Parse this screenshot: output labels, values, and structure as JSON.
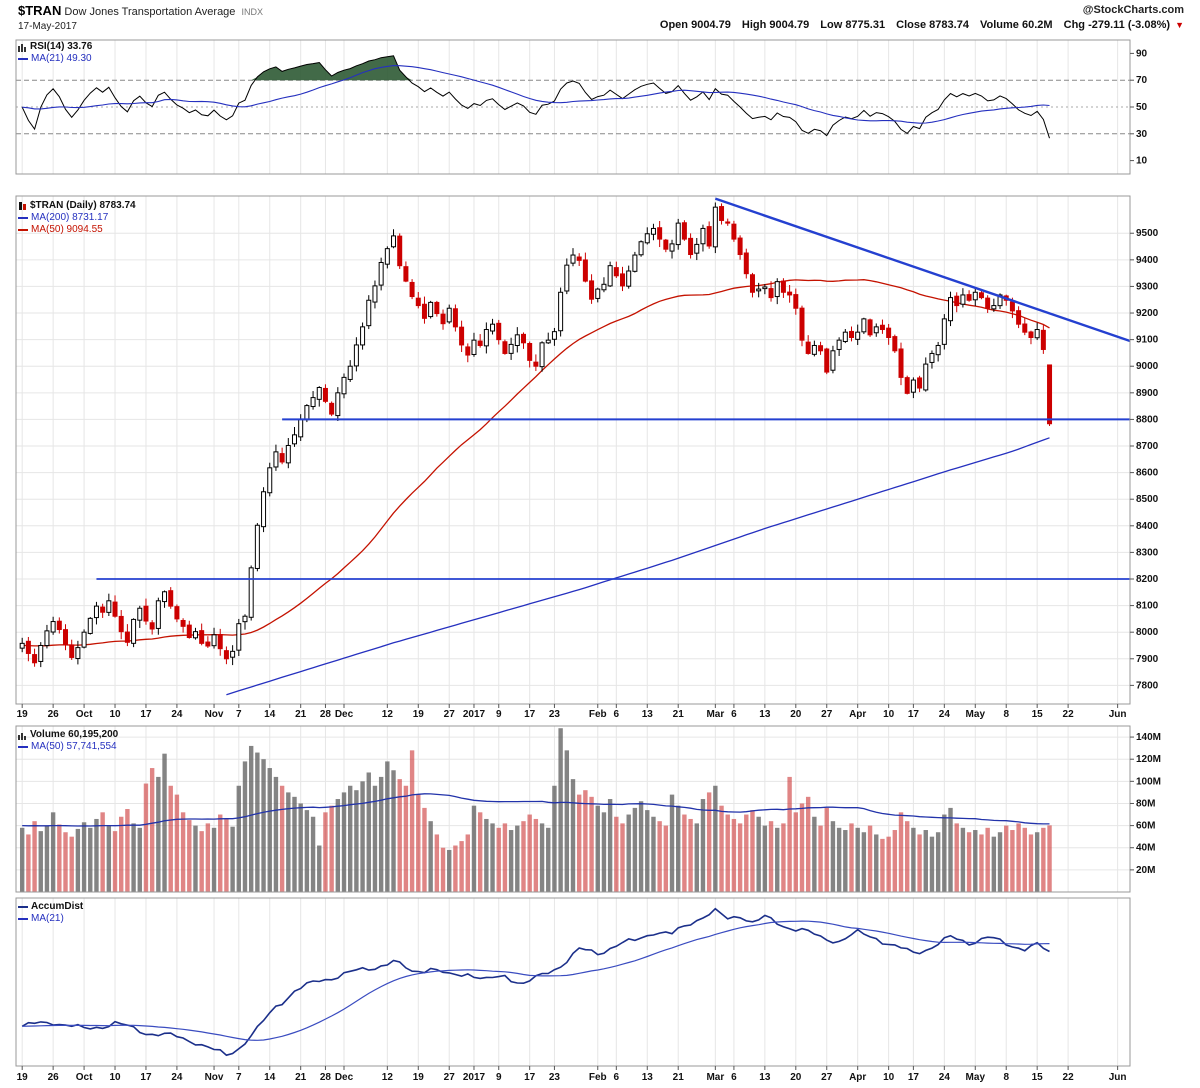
{
  "header": {
    "symbol": "$TRAN",
    "name": "Dow Jones Transportation Average",
    "exchange": "INDX",
    "credit": "@StockCharts.com",
    "date": "17-May-2017",
    "quote_items": [
      {
        "label": "Open",
        "value": "9004.79"
      },
      {
        "label": "High",
        "value": "9004.79"
      },
      {
        "label": "Low",
        "value": "8775.31"
      },
      {
        "label": "Close",
        "value": "8783.74"
      },
      {
        "label": "Volume",
        "value": "60.2M"
      },
      {
        "label": "Chg",
        "value": "-279.11 (-3.08%)"
      }
    ],
    "chg_arrow": "▼"
  },
  "colors": {
    "grid": "#e6e6e6",
    "border": "#999999",
    "axis_text": "#111111",
    "candle_up": "#000000",
    "candle_up_fill": "#ffffff",
    "candle_down": "#cc0000",
    "ma50": "#c41200",
    "ma200": "#2530bf",
    "trendline": "#2440d0",
    "rsi_line": "#000000",
    "rsi_ma": "#2530bf",
    "rsi_fill": "#2d5a34",
    "vol_up": "#555555",
    "vol_down": "#cc3333",
    "vol_ma": "#2233aa",
    "ad_line": "#1b2f8a",
    "ad_ma": "#3a4cc0"
  },
  "chart_data": [
    {
      "type": "line",
      "panel": "rsi",
      "label": "RSI(14) 33.76",
      "ma_label": "MA(21) 49.30",
      "last_value": 33.76,
      "ma_period": 21,
      "ylim": [
        0,
        100
      ],
      "yticks": [
        90,
        70,
        50,
        30,
        10
      ],
      "overbought": 70,
      "midline": 50,
      "oversold": 30
    },
    {
      "type": "candlestick",
      "panel": "price",
      "label": "$TRAN (Daily) 8783.74",
      "ma200_label": "MA(200) 8731.17",
      "ma50_label": "MA(50) 9094.55",
      "ylim": [
        7730,
        9640
      ],
      "yticks": [
        9500,
        9400,
        9300,
        9200,
        9100,
        9000,
        8900,
        8800,
        8700,
        8600,
        8500,
        8400,
        8300,
        8200,
        8100,
        8000,
        7900,
        7800
      ],
      "x_ticks": [
        [
          "19",
          0
        ],
        [
          "26",
          5
        ],
        [
          "Oct",
          10
        ],
        [
          "10",
          15
        ],
        [
          "17",
          20
        ],
        [
          "24",
          25
        ],
        [
          "Nov",
          31
        ],
        [
          "7",
          35
        ],
        [
          "14",
          40
        ],
        [
          "21",
          45
        ],
        [
          "28",
          49
        ],
        [
          "Dec",
          52
        ],
        [
          "12",
          59
        ],
        [
          "19",
          64
        ],
        [
          "27",
          69
        ],
        [
          "2017",
          73
        ],
        [
          "9",
          77
        ],
        [
          "17",
          82
        ],
        [
          "23",
          86
        ],
        [
          "Feb",
          93
        ],
        [
          "6",
          96
        ],
        [
          "13",
          101
        ],
        [
          "21",
          106
        ],
        [
          "Mar",
          112
        ],
        [
          "6",
          115
        ],
        [
          "13",
          120
        ],
        [
          "20",
          125
        ],
        [
          "27",
          130
        ],
        [
          "Apr",
          135
        ],
        [
          "10",
          140
        ],
        [
          "17",
          144
        ],
        [
          "24",
          149
        ],
        [
          "May",
          154
        ],
        [
          "8",
          159
        ],
        [
          "15",
          164
        ],
        [
          "22",
          169
        ],
        [
          "Jun",
          177
        ]
      ],
      "x_domain": [
        -1,
        179
      ],
      "closes": [
        7958,
        7920,
        7885,
        7950,
        8005,
        8040,
        8010,
        7952,
        7905,
        7942,
        8000,
        8052,
        8098,
        8075,
        8118,
        8060,
        8002,
        7962,
        8048,
        8090,
        8042,
        8012,
        8118,
        8152,
        8098,
        8050,
        8022,
        7980,
        8002,
        7958,
        7948,
        7990,
        7938,
        7900,
        7928,
        8032,
        8060,
        8242,
        8402,
        8528,
        8618,
        8678,
        8640,
        8702,
        8742,
        8800,
        8852,
        8882,
        8920,
        8868,
        8820,
        8900,
        8958,
        9000,
        9080,
        9148,
        9248,
        9302,
        9390,
        9442,
        9490,
        9378,
        9320,
        9262,
        9228,
        9180,
        9240,
        9198,
        9160,
        9218,
        9148,
        9080,
        9042,
        9098,
        9078,
        9138,
        9158,
        9100,
        9048,
        9082,
        9118,
        9088,
        9022,
        9000,
        9088,
        9098,
        9130,
        9278,
        9380,
        9418,
        9398,
        9320,
        9252,
        9290,
        9308,
        9378,
        9340,
        9302,
        9358,
        9418,
        9468,
        9498,
        9518,
        9478,
        9440,
        9460,
        9538,
        9478,
        9420,
        9458,
        9518,
        9452,
        9598,
        9548,
        9538,
        9478,
        9420,
        9348,
        9278,
        9290,
        9298,
        9258,
        9318,
        9278,
        9268,
        9218,
        9098,
        9048,
        9078,
        9058,
        8978,
        9058,
        9098,
        9128,
        9108,
        9128,
        9178,
        9118,
        9148,
        9138,
        9108,
        9058,
        8958,
        8898,
        8948,
        8918,
        9008,
        9048,
        9078,
        9178,
        9258,
        9228,
        9268,
        9248,
        9278,
        9258,
        9218,
        9228,
        9268,
        9248,
        9208,
        9158,
        9128,
        9108,
        9138,
        9063,
        8783.74
      ],
      "last_bar": {
        "open": 9004.79,
        "high": 9004.79,
        "low": 8775.31,
        "close": 8783.74
      },
      "ma50_period": 50,
      "ma200_waypoints": [
        [
          33,
          7765
        ],
        [
          45,
          7852
        ],
        [
          60,
          7960
        ],
        [
          75,
          8060
        ],
        [
          90,
          8160
        ],
        [
          105,
          8270
        ],
        [
          120,
          8390
        ],
        [
          135,
          8500
        ],
        [
          150,
          8610
        ],
        [
          160,
          8680
        ],
        [
          166,
          8731
        ]
      ],
      "trendlines": [
        {
          "kind": "diagonal",
          "x1": 112,
          "y1": 9630,
          "x2": 179,
          "y2": 9095
        },
        {
          "kind": "hline",
          "y": 8800,
          "x1": 42,
          "x2": 179
        },
        {
          "kind": "hline",
          "y": 8200,
          "x1": 12,
          "x2": 179
        }
      ]
    },
    {
      "type": "bar",
      "panel": "volume",
      "label": "Volume 60,195,200",
      "ma_label": "MA(50) 57,741,554",
      "ma_period": 50,
      "ylim_millions": [
        0,
        150
      ],
      "yticks_millions": [
        140,
        120,
        100,
        80,
        60,
        40,
        20
      ],
      "volumes_millions": [
        58,
        52,
        64,
        55,
        60,
        72,
        61,
        54,
        50,
        57,
        63,
        58,
        66,
        72,
        60,
        55,
        68,
        75,
        62,
        58,
        98,
        112,
        104,
        125,
        96,
        88,
        72,
        65,
        60,
        55,
        62,
        58,
        70,
        66,
        59,
        96,
        118,
        132,
        126,
        120,
        112,
        104,
        96,
        90,
        86,
        80,
        74,
        68,
        42,
        72,
        78,
        84,
        90,
        96,
        92,
        100,
        108,
        96,
        104,
        118,
        110,
        102,
        96,
        128,
        88,
        76,
        64,
        52,
        40,
        38,
        42,
        46,
        52,
        78,
        72,
        66,
        62,
        58,
        62,
        56,
        60,
        64,
        70,
        66,
        62,
        58,
        96,
        148,
        128,
        102,
        88,
        92,
        86,
        78,
        72,
        84,
        68,
        62,
        70,
        76,
        82,
        74,
        68,
        64,
        60,
        88,
        78,
        70,
        66,
        62,
        84,
        90,
        96,
        78,
        70,
        66,
        62,
        70,
        74,
        68,
        60,
        64,
        58,
        62,
        104,
        72,
        80,
        86,
        68,
        60,
        76,
        64,
        58,
        56,
        62,
        58,
        54,
        60,
        52,
        48,
        50,
        56,
        72,
        64,
        58,
        52,
        56,
        50,
        54,
        70,
        76,
        62,
        58,
        54,
        56,
        52,
        58,
        50,
        54,
        60,
        56,
        62,
        58,
        52,
        54,
        58,
        60.2
      ]
    },
    {
      "type": "line",
      "panel": "accum_dist",
      "label": "AccumDist",
      "ma_label": "MA(21)",
      "ma_period": 21,
      "ylim": [
        0,
        100
      ],
      "waypoints_pct": [
        [
          0,
          22
        ],
        [
          5,
          25
        ],
        [
          10,
          20
        ],
        [
          15,
          24
        ],
        [
          20,
          18
        ],
        [
          25,
          15
        ],
        [
          28,
          12
        ],
        [
          31,
          6
        ],
        [
          33,
          3
        ],
        [
          35,
          8
        ],
        [
          38,
          20
        ],
        [
          41,
          35
        ],
        [
          44,
          45
        ],
        [
          48,
          52
        ],
        [
          52,
          56
        ],
        [
          56,
          60
        ],
        [
          60,
          64
        ],
        [
          63,
          58
        ],
        [
          66,
          60
        ],
        [
          69,
          55
        ],
        [
          72,
          57
        ],
        [
          75,
          52
        ],
        [
          78,
          55
        ],
        [
          81,
          50
        ],
        [
          84,
          55
        ],
        [
          87,
          62
        ],
        [
          90,
          72
        ],
        [
          93,
          70
        ],
        [
          96,
          75
        ],
        [
          99,
          78
        ],
        [
          102,
          84
        ],
        [
          105,
          82
        ],
        [
          108,
          90
        ],
        [
          110,
          94
        ],
        [
          112,
          97
        ],
        [
          114,
          92
        ],
        [
          116,
          95
        ],
        [
          118,
          90
        ],
        [
          120,
          93
        ],
        [
          123,
          88
        ],
        [
          126,
          85
        ],
        [
          129,
          80
        ],
        [
          132,
          78
        ],
        [
          135,
          83
        ],
        [
          138,
          80
        ],
        [
          141,
          74
        ],
        [
          144,
          70
        ],
        [
          147,
          74
        ],
        [
          150,
          80
        ],
        [
          153,
          77
        ],
        [
          156,
          80
        ],
        [
          159,
          76
        ],
        [
          162,
          73
        ],
        [
          164,
          75
        ],
        [
          166,
          70
        ]
      ]
    }
  ]
}
